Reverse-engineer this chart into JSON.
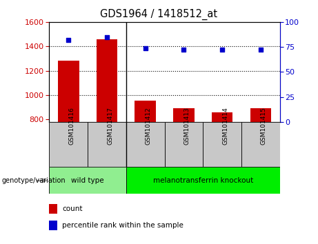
{
  "title": "GDS1964 / 1418512_at",
  "samples": [
    "GSM101416",
    "GSM101417",
    "GSM101412",
    "GSM101413",
    "GSM101414",
    "GSM101415"
  ],
  "bar_values": [
    1280,
    1460,
    955,
    895,
    858,
    893
  ],
  "percentile_values": [
    82,
    85,
    74,
    72,
    72,
    72
  ],
  "ylim_left": [
    780,
    1600
  ],
  "ylim_right": [
    0,
    100
  ],
  "yticks_left": [
    800,
    1000,
    1200,
    1400,
    1600
  ],
  "yticks_right": [
    0,
    25,
    50,
    75,
    100
  ],
  "bar_color": "#CC0000",
  "dot_color": "#0000CC",
  "bar_width": 0.55,
  "tick_label_color_left": "#CC0000",
  "tick_label_color_right": "#0000CC",
  "group_wt_label": "wild type",
  "group_ko_label": "melanotransferrin knockout",
  "group_wt_color": "#90EE90",
  "group_ko_color": "#00EE00",
  "xtick_bg_color": "#C8C8C8",
  "genotype_label": "genotype/variation",
  "legend_count_label": "count",
  "legend_pct_label": "percentile rank within the sample",
  "wt_count": 2,
  "ko_count": 4,
  "n_samples": 6
}
